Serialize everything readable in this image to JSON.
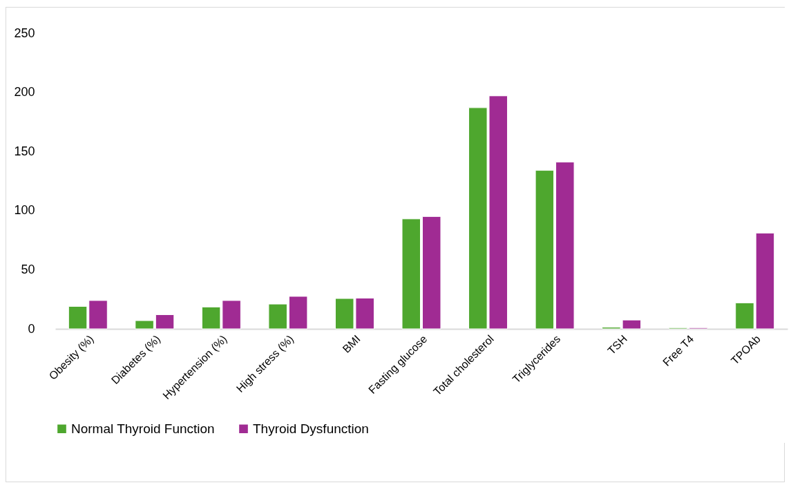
{
  "chart_data": {
    "type": "bar",
    "categories": [
      "Obesity (%)",
      "Diabetes (%)",
      "Hypertension (%)",
      "High stress (%)",
      "BMI",
      "Fasting glucose",
      "Total cholesterol",
      "Triglycerides",
      "TSH",
      "Free T4",
      "TPOAb"
    ],
    "series": [
      {
        "name": "Normal Thyroid Function",
        "color": "#4ea72e",
        "values": [
          19,
          7,
          18.5,
          21,
          25.7,
          93,
          187,
          134,
          1.4,
          1,
          22
        ]
      },
      {
        "name": "Thyroid Dysfunction",
        "color": "#a02b93",
        "values": [
          24,
          12,
          24,
          27.5,
          26,
          95,
          197,
          141,
          7.5,
          1,
          81
        ]
      }
    ],
    "ylim": [
      0,
      250
    ],
    "yticks": [
      0,
      50,
      100,
      150,
      200,
      250
    ],
    "grid": false,
    "legend": "bottom"
  }
}
